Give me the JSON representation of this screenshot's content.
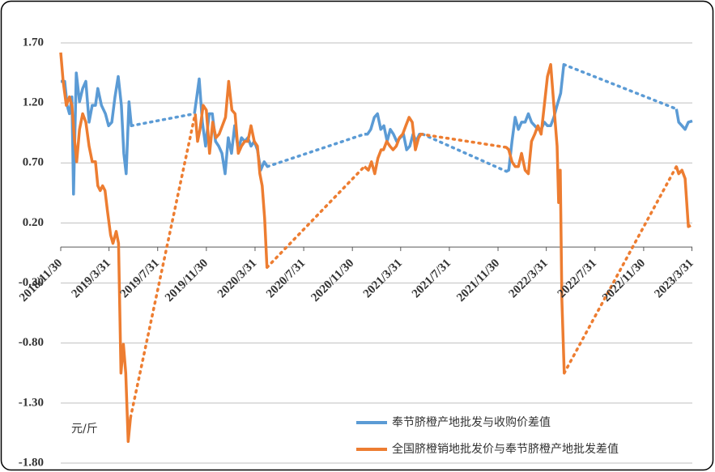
{
  "chart_data": {
    "type": "line",
    "y_unit_label": "元/斤",
    "xlim": [
      "2018-11-30",
      "2023-04-01"
    ],
    "xticks": [
      {
        "value": "2018-11-30",
        "label": "2018/11/30"
      },
      {
        "value": "2019-03-31",
        "label": "2019/3/31"
      },
      {
        "value": "2019-07-31",
        "label": "2019/7/31"
      },
      {
        "value": "2019-11-30",
        "label": "2019/11/30"
      },
      {
        "value": "2020-03-31",
        "label": "2020/3/31"
      },
      {
        "value": "2020-07-31",
        "label": "2020/7/31"
      },
      {
        "value": "2020-11-30",
        "label": "2020/11/30"
      },
      {
        "value": "2021-03-31",
        "label": "2021/3/31"
      },
      {
        "value": "2021-07-31",
        "label": "2021/7/31"
      },
      {
        "value": "2021-11-30",
        "label": "2021/11/30"
      },
      {
        "value": "2022-03-31",
        "label": "2022/3/31"
      },
      {
        "value": "2022-07-31",
        "label": "2022/7/31"
      },
      {
        "value": "2022-11-30",
        "label": "2022/11/30"
      },
      {
        "value": "2023-03-31",
        "label": "2023/3/31"
      }
    ],
    "ylim": [
      -1.8,
      1.7
    ],
    "yticks": [
      {
        "value": 1.7,
        "label": "1.70"
      },
      {
        "value": 1.2,
        "label": "1.20"
      },
      {
        "value": 0.7,
        "label": "0.70"
      },
      {
        "value": 0.2,
        "label": "0.20"
      },
      {
        "value": -0.3,
        "label": "-0.30"
      },
      {
        "value": -0.8,
        "label": "-0.80"
      },
      {
        "value": -1.3,
        "label": "-1.30"
      },
      {
        "value": -1.8,
        "label": "-1.80"
      }
    ],
    "grid": true,
    "legend": "lower right",
    "series": [
      {
        "name": "奉节脐橙产地批发与收购价差值",
        "color": "#5b9bd5",
        "x": [
          "2018-11-30",
          "2018-12-10",
          "2018-12-16",
          "2018-12-22",
          "2018-12-28",
          "2019-01-01",
          "2019-01-08",
          "2019-01-16",
          "2019-01-24",
          "2019-02-01",
          "2019-02-09",
          "2019-02-17",
          "2019-02-25",
          "2019-03-03",
          "2019-03-12",
          "2019-03-22",
          "2019-03-30",
          "2019-04-07",
          "2019-04-15",
          "2019-04-23",
          "2019-05-01",
          "2019-05-07",
          "2019-05-13",
          "2019-05-20",
          "2019-05-26",
          "2019-10-31",
          "2019-11-06",
          "2019-11-12",
          "2019-11-20",
          "2019-11-28",
          "2019-12-07",
          "2019-12-15",
          "2019-12-23",
          "2019-12-31",
          "2020-01-08",
          "2020-01-16",
          "2020-01-24",
          "2020-02-01",
          "2020-02-09",
          "2020-02-18",
          "2020-02-26",
          "2020-03-05",
          "2020-03-13",
          "2020-03-21",
          "2020-03-29",
          "2020-04-06",
          "2020-04-14",
          "2020-04-23",
          "2020-05-01",
          "2020-12-30",
          "2021-01-07",
          "2021-01-15",
          "2021-01-24",
          "2021-02-01",
          "2021-02-09",
          "2021-02-17",
          "2021-02-25",
          "2021-03-05",
          "2021-03-13",
          "2021-03-21",
          "2021-03-30",
          "2021-04-07",
          "2021-04-15",
          "2021-04-23",
          "2021-05-01",
          "2021-05-09",
          "2021-05-17",
          "2021-05-25",
          "2021-12-21",
          "2021-12-27",
          "2022-01-04",
          "2022-01-12",
          "2022-01-20",
          "2022-01-28",
          "2022-02-06",
          "2022-02-14",
          "2022-02-22",
          "2022-03-02",
          "2022-03-10",
          "2022-03-18",
          "2022-03-26",
          "2022-04-03",
          "2022-04-11",
          "2022-04-19",
          "2022-04-27",
          "2022-05-06",
          "2022-05-14",
          "2023-02-20",
          "2023-02-26",
          "2023-03-06",
          "2023-03-14",
          "2023-03-22",
          "2023-04-01"
        ],
        "values": [
          1.38,
          1.38,
          1.18,
          1.11,
          1.25,
          0.44,
          1.45,
          1.21,
          1.32,
          1.38,
          1.04,
          1.18,
          1.18,
          1.32,
          1.18,
          1.11,
          1.01,
          1.04,
          1.25,
          1.42,
          1.18,
          0.78,
          0.61,
          1.21,
          1.01,
          1.11,
          1.25,
          1.4,
          1.04,
          0.84,
          1.11,
          1.11,
          0.88,
          0.84,
          0.78,
          0.61,
          0.91,
          0.78,
          1.01,
          0.81,
          0.91,
          0.88,
          0.91,
          0.84,
          0.88,
          0.81,
          0.64,
          0.71,
          0.67,
          0.94,
          0.94,
          0.98,
          1.08,
          1.11,
          0.98,
          1.01,
          0.88,
          0.98,
          0.94,
          0.88,
          0.91,
          0.94,
          0.81,
          0.84,
          0.94,
          0.88,
          0.94,
          0.94,
          0.63,
          0.64,
          0.88,
          1.08,
          0.98,
          1.04,
          1.04,
          1.11,
          1.04,
          1.01,
          0.98,
          0.98,
          1.04,
          1.01,
          1.01,
          1.08,
          1.18,
          1.28,
          1.52,
          1.15,
          1.04,
          1.01,
          0.98,
          1.04,
          1.05
        ]
      },
      {
        "name": "全国脐橙销地批发价与奉节脐橙产地批发差值",
        "color": "#ed7d31",
        "x": [
          "2018-11-30",
          "2018-12-06",
          "2018-12-14",
          "2018-12-22",
          "2018-12-28",
          "2019-01-03",
          "2019-01-09",
          "2019-01-16",
          "2019-01-24",
          "2019-02-01",
          "2019-02-09",
          "2019-02-17",
          "2019-02-25",
          "2019-03-03",
          "2019-03-09",
          "2019-03-15",
          "2019-03-21",
          "2019-03-27",
          "2019-04-04",
          "2019-04-10",
          "2019-04-18",
          "2019-04-24",
          "2019-04-30",
          "2019-05-06",
          "2019-05-12",
          "2019-05-18",
          "2019-05-24",
          "2019-11-02",
          "2019-11-08",
          "2019-11-14",
          "2019-11-22",
          "2019-11-30",
          "2019-12-08",
          "2019-12-16",
          "2019-12-24",
          "2020-01-01",
          "2020-01-09",
          "2020-01-17",
          "2020-01-25",
          "2020-02-02",
          "2020-02-10",
          "2020-02-18",
          "2020-02-26",
          "2020-03-05",
          "2020-03-13",
          "2020-03-21",
          "2020-03-29",
          "2020-04-06",
          "2020-04-12",
          "2020-04-18",
          "2020-04-24",
          "2020-04-30",
          "2020-12-30",
          "2021-01-09",
          "2021-01-17",
          "2021-01-25",
          "2021-02-02",
          "2021-02-10",
          "2021-02-16",
          "2021-02-24",
          "2021-03-04",
          "2021-03-12",
          "2021-03-20",
          "2021-03-28",
          "2021-04-05",
          "2021-04-13",
          "2021-04-21",
          "2021-04-29",
          "2021-05-07",
          "2021-05-15",
          "2021-05-21",
          "2021-12-21",
          "2021-12-27",
          "2022-01-04",
          "2022-01-12",
          "2022-01-20",
          "2022-01-28",
          "2022-02-06",
          "2022-02-14",
          "2022-02-22",
          "2022-03-02",
          "2022-03-10",
          "2022-03-18",
          "2022-03-26",
          "2022-04-03",
          "2022-04-11",
          "2022-04-19",
          "2022-04-27",
          "2022-05-01",
          "2022-05-05",
          "2022-05-09",
          "2022-05-15",
          "2023-02-20",
          "2023-02-26",
          "2023-03-06",
          "2023-03-14",
          "2023-03-22",
          "2023-03-28"
        ],
        "values": [
          1.62,
          1.38,
          1.18,
          1.25,
          1.18,
          0.91,
          0.71,
          0.98,
          1.11,
          1.04,
          0.84,
          0.71,
          0.71,
          0.51,
          0.47,
          0.51,
          0.47,
          0.3,
          0.1,
          0.03,
          0.13,
          0.03,
          -1.05,
          -0.81,
          -1.05,
          -1.62,
          -1.42,
          1.11,
          0.88,
          0.98,
          1.18,
          1.14,
          0.78,
          1.04,
          0.91,
          0.94,
          1.01,
          1.08,
          1.38,
          1.14,
          1.11,
          0.78,
          0.84,
          0.88,
          0.88,
          1.01,
          0.88,
          0.84,
          0.61,
          0.51,
          0.24,
          -0.17,
          0.67,
          0.64,
          0.71,
          0.61,
          0.74,
          0.81,
          0.81,
          0.88,
          0.84,
          0.81,
          0.84,
          0.91,
          0.94,
          1.01,
          1.08,
          1.04,
          0.81,
          0.91,
          0.94,
          0.83,
          0.81,
          0.71,
          0.67,
          0.67,
          0.78,
          0.64,
          0.61,
          0.88,
          0.94,
          1.01,
          0.94,
          1.18,
          1.42,
          1.52,
          1.18,
          0.84,
          0.37,
          0.64,
          -0.44,
          -1.05,
          0.67,
          0.61,
          0.64,
          0.57,
          0.17,
          0.18
        ]
      }
    ]
  }
}
